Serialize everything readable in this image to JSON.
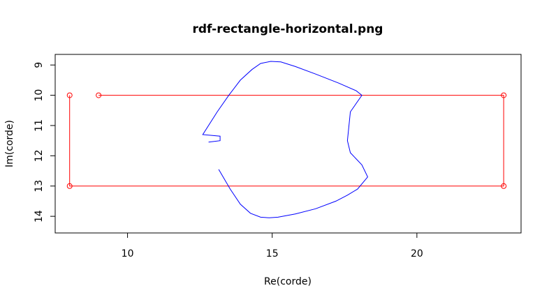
{
  "chart_data": {
    "type": "line",
    "title": "rdf-rectangle-horizontal.png",
    "xlabel": "Re(corde)",
    "ylabel": "Im(corde)",
    "xlim": [
      7.5,
      23.6
    ],
    "ylim": [
      14.55,
      8.65
    ],
    "x_ticks": [
      10,
      15,
      20
    ],
    "y_ticks": [
      9,
      10,
      11,
      12,
      13,
      14
    ],
    "grid": false,
    "series": [
      {
        "color": "#ff0000",
        "style": "line+circle-markers",
        "x": [
          9,
          23,
          23,
          8,
          8
        ],
        "y": [
          10,
          10,
          13,
          13,
          10
        ]
      },
      {
        "color": "#0000ff",
        "style": "line",
        "x": [
          12.8,
          13.2,
          13.2,
          12.6,
          13.1,
          13.5,
          13.9,
          14.3,
          14.6,
          14.95,
          15.3,
          15.8,
          16.5,
          17.3,
          17.9,
          18.1,
          17.7,
          17.6,
          17.7,
          18.1,
          18.3,
          17.95,
          17.6,
          17.2,
          16.5,
          15.8,
          15.2,
          14.9,
          14.6,
          14.25,
          13.9,
          13.55,
          13.15
        ],
        "y": [
          11.55,
          11.5,
          11.35,
          11.3,
          10.55,
          10.0,
          9.5,
          9.15,
          8.95,
          8.88,
          8.9,
          9.05,
          9.3,
          9.6,
          9.85,
          10.0,
          10.55,
          11.5,
          11.9,
          12.3,
          12.7,
          13.1,
          13.3,
          13.5,
          13.75,
          13.92,
          14.03,
          14.05,
          14.03,
          13.9,
          13.6,
          13.1,
          12.45
        ]
      }
    ]
  }
}
